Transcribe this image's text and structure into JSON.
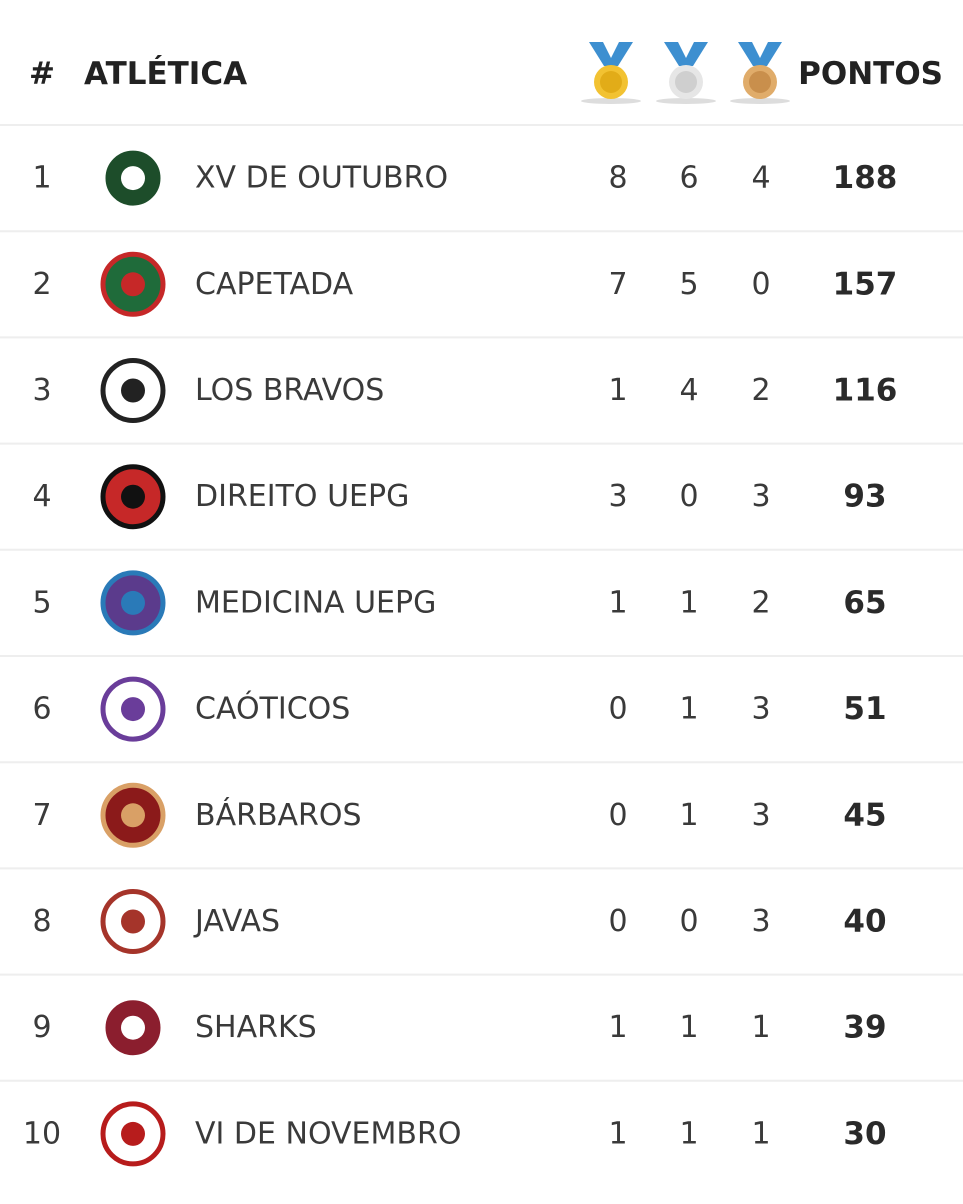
{
  "table": {
    "header": {
      "rank": "#",
      "team": "ATLÉTICA",
      "points": "PONTOS"
    },
    "rows": [
      [
        1,
        "XV DE OUTUBRO",
        8,
        6,
        4,
        188
      ],
      [
        2,
        "CAPETADA",
        7,
        5,
        0,
        157
      ],
      [
        3,
        "LOS BRAVOS",
        1,
        4,
        2,
        116
      ],
      [
        4,
        "DIREITO UEPG",
        3,
        0,
        3,
        93
      ],
      [
        5,
        "MEDICINA UEPG",
        1,
        1,
        2,
        65
      ],
      [
        6,
        "CAÓTICOS",
        0,
        1,
        3,
        51
      ],
      [
        7,
        "BÁRBAROS",
        0,
        1,
        3,
        45
      ],
      [
        8,
        "JAVAS",
        0,
        0,
        3,
        40
      ],
      [
        9,
        "SHARKS",
        1,
        1,
        1,
        39
      ],
      [
        10,
        "VI DE NOVEMBRO",
        1,
        1,
        1,
        30
      ]
    ]
  }
}
